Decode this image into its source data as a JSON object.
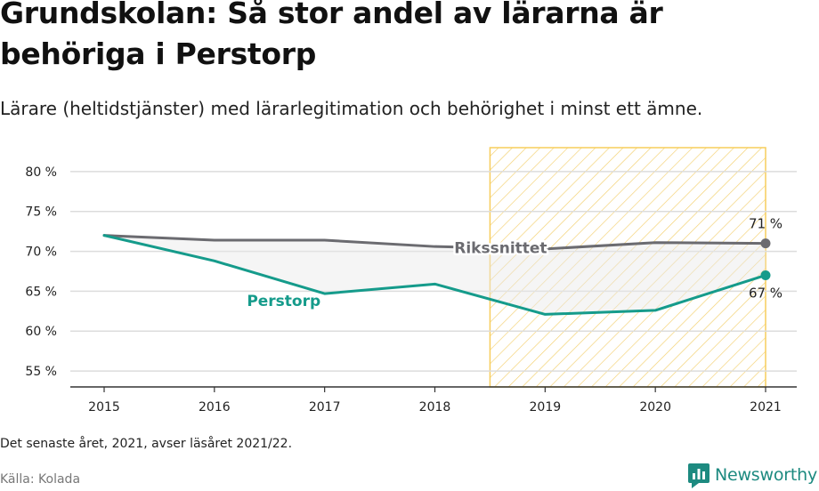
{
  "title": "Grundskolan: Så stor andel av lärarna är behöriga i Perstorp",
  "subtitle": "Lärare (heltidstjänster) med lärarlegitimation och behörighet i minst ett ämne.",
  "note": "Det senaste året, 2021, avser läsåret 2021/22.",
  "source": "Källa: Kolada",
  "brand": {
    "name": "Newsworthy",
    "color": "#1d8a80"
  },
  "chart_data": {
    "type": "line",
    "title": "Grundskolan: Så stor andel av lärarna är behöriga i Perstorp",
    "x": [
      2015,
      2016,
      2017,
      2018,
      2019,
      2020,
      2021
    ],
    "x_tick_labels": [
      "2015",
      "2016",
      "2017",
      "2018",
      "2019",
      "2020",
      "2021"
    ],
    "y_tick_labels": [
      "55 %",
      "60 %",
      "65 %",
      "70 %",
      "75 %",
      "80 %"
    ],
    "ylim": [
      53,
      83
    ],
    "y_ticks": [
      55,
      60,
      65,
      70,
      75,
      80
    ],
    "grid": true,
    "highlight_range": [
      2018.5,
      2021
    ],
    "highlight_color": "#f7cd5c",
    "series": [
      {
        "name": "Rikssnittet",
        "values": [
          72,
          71.4,
          71.4,
          70.6,
          70.3,
          71.1,
          71
        ],
        "color": "#6b6b70",
        "end_label": "71 %"
      },
      {
        "name": "Perstorp",
        "values": [
          72,
          68.8,
          64.7,
          65.9,
          62.1,
          62.6,
          67
        ],
        "color": "#159b8b",
        "end_label": "67 %"
      }
    ]
  }
}
